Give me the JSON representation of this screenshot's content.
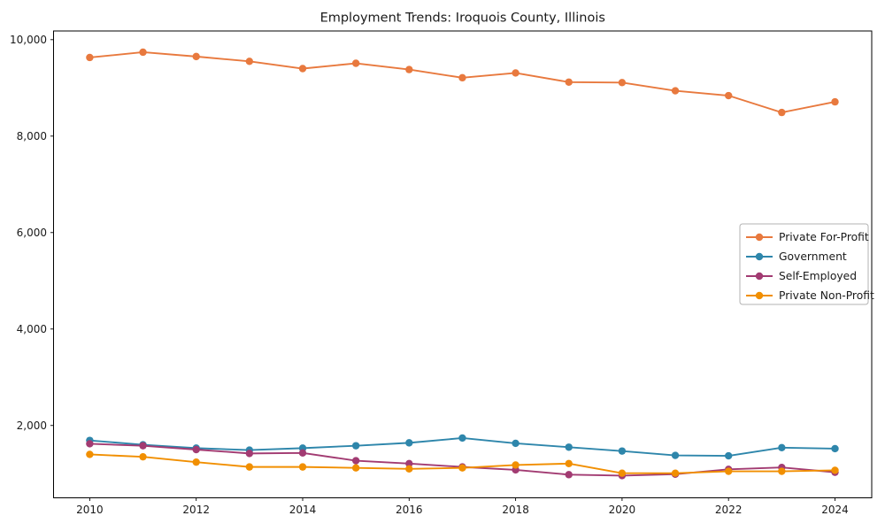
{
  "figure": {
    "background": "#ffffff",
    "spine_color": "#000000",
    "text_color": "#1a1a1a"
  },
  "chart_data": {
    "type": "line",
    "title": "Employment Trends: Iroquois County, Illinois",
    "xlabel": "",
    "ylabel": "",
    "grid": false,
    "x": [
      2010,
      2011,
      2012,
      2013,
      2014,
      2015,
      2016,
      2017,
      2018,
      2019,
      2020,
      2021,
      2022,
      2023,
      2024
    ],
    "series": [
      {
        "name": "Private For-Profit",
        "color": "#E8793E",
        "values": [
          9630,
          9740,
          9650,
          9550,
          9400,
          9510,
          9380,
          9210,
          9310,
          9120,
          9110,
          8940,
          8840,
          8490,
          8710
        ]
      },
      {
        "name": "Government",
        "color": "#2E86AB",
        "values": [
          1690,
          1600,
          1530,
          1490,
          1530,
          1580,
          1640,
          1740,
          1630,
          1550,
          1470,
          1380,
          1370,
          1540,
          1520
        ]
      },
      {
        "name": "Self-Employed",
        "color": "#A23B72",
        "values": [
          1620,
          1580,
          1500,
          1420,
          1430,
          1270,
          1210,
          1140,
          1080,
          980,
          960,
          990,
          1090,
          1130,
          1030
        ]
      },
      {
        "name": "Private Non-Profit",
        "color": "#F18F01",
        "values": [
          1400,
          1350,
          1240,
          1140,
          1140,
          1120,
          1100,
          1120,
          1180,
          1210,
          1010,
          1010,
          1050,
          1050,
          1070
        ]
      }
    ],
    "xlim": [
      2009.32,
      2024.69
    ],
    "ylim": [
      500,
      10180
    ],
    "xticks": [
      2010,
      2012,
      2014,
      2016,
      2018,
      2020,
      2022,
      2024
    ],
    "xtick_labels": [
      "2010",
      "2012",
      "2014",
      "2016",
      "2018",
      "2020",
      "2022",
      "2024"
    ],
    "yticks": [
      2000,
      4000,
      6000,
      8000,
      10000
    ],
    "ytick_labels": [
      "2,000",
      "4,000",
      "6,000",
      "8,000",
      "10,000"
    ],
    "legend": {
      "position": "center-right",
      "border_color": "#b3b3b3",
      "background": "#ffffff",
      "entries": [
        "Private For-Profit",
        "Government",
        "Self-Employed",
        "Private Non-Profit"
      ]
    }
  }
}
